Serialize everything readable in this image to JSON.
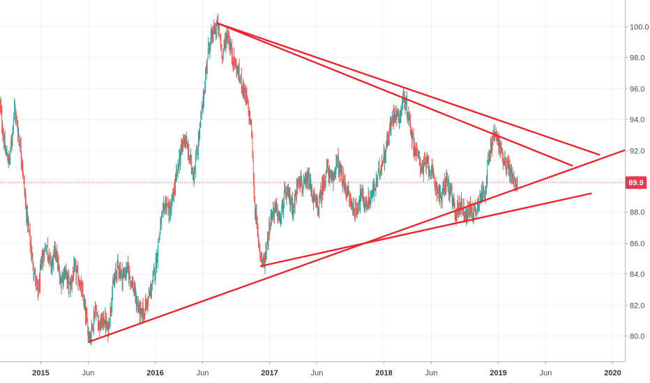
{
  "chart_data": {
    "type": "line",
    "title": "",
    "xlabel": "",
    "ylabel": "",
    "grid": true,
    "x_ticks": [
      {
        "label": "2015",
        "date": "2015-01-01",
        "major": true
      },
      {
        "label": "Jun",
        "date": "2015-06-01",
        "major": false
      },
      {
        "label": "2016",
        "date": "2016-01-01",
        "major": true
      },
      {
        "label": "Jun",
        "date": "2016-06-01",
        "major": false
      },
      {
        "label": "2017",
        "date": "2017-01-01",
        "major": true
      },
      {
        "label": "Jun",
        "date": "2017-06-01",
        "major": false
      },
      {
        "label": "2018",
        "date": "2018-01-01",
        "major": true
      },
      {
        "label": "Jun",
        "date": "2018-06-01",
        "major": false
      },
      {
        "label": "2019",
        "date": "2019-01-01",
        "major": true
      },
      {
        "label": "Jun",
        "date": "2019-06-01",
        "major": false
      },
      {
        "label": "2020",
        "date": "2020-01-01",
        "major": true
      }
    ],
    "y_ticks": [
      "80.0",
      "82.0",
      "84.0",
      "86.0",
      "88.0",
      "90.0",
      "92.0",
      "94.0",
      "96.0",
      "98.0",
      "100.0"
    ],
    "ylim": [
      78.9,
      101.6
    ],
    "xlim": [
      "2014-08-25",
      "2020-02-10"
    ],
    "last_price": {
      "label": "89.9",
      "value": 89.9,
      "color": "#f0344a"
    },
    "price_series": {
      "up_color": "#26a69a",
      "down_color": "#ef5350",
      "points": [
        [
          "2014-08-25",
          95.0
        ],
        [
          "2014-09-10",
          92.0
        ],
        [
          "2014-09-25",
          91.2
        ],
        [
          "2014-10-10",
          94.8
        ],
        [
          "2014-10-20",
          93.5
        ],
        [
          "2014-11-03",
          91.5
        ],
        [
          "2014-11-15",
          88.5
        ],
        [
          "2014-12-01",
          85.8
        ],
        [
          "2014-12-12",
          84.2
        ],
        [
          "2014-12-25",
          82.6
        ],
        [
          "2015-01-05",
          84.8
        ],
        [
          "2015-01-20",
          85.9
        ],
        [
          "2015-02-05",
          84.5
        ],
        [
          "2015-02-20",
          85.6
        ],
        [
          "2015-03-05",
          83.4
        ],
        [
          "2015-03-20",
          84.2
        ],
        [
          "2015-04-05",
          83.1
        ],
        [
          "2015-04-20",
          84.3
        ],
        [
          "2015-05-05",
          83.6
        ],
        [
          "2015-05-18",
          82.4
        ],
        [
          "2015-06-01",
          80.5
        ],
        [
          "2015-06-10",
          79.9
        ],
        [
          "2015-06-25",
          81.8
        ],
        [
          "2015-07-10",
          80.6
        ],
        [
          "2015-07-25",
          81.1
        ],
        [
          "2015-08-05",
          80.3
        ],
        [
          "2015-08-20",
          83.0
        ],
        [
          "2015-09-05",
          84.6
        ],
        [
          "2015-09-20",
          83.8
        ],
        [
          "2015-10-05",
          84.3
        ],
        [
          "2015-10-20",
          83.5
        ],
        [
          "2015-11-05",
          82.1
        ],
        [
          "2015-11-20",
          81.3
        ],
        [
          "2015-12-05",
          82.0
        ],
        [
          "2015-12-20",
          82.9
        ],
        [
          "2016-01-05",
          84.6
        ],
        [
          "2016-01-20",
          87.2
        ],
        [
          "2016-02-05",
          88.6
        ],
        [
          "2016-02-20",
          87.9
        ],
        [
          "2016-03-05",
          89.6
        ],
        [
          "2016-03-20",
          91.4
        ],
        [
          "2016-04-05",
          92.9
        ],
        [
          "2016-04-20",
          91.6
        ],
        [
          "2016-05-05",
          90.4
        ],
        [
          "2016-05-20",
          92.6
        ],
        [
          "2016-06-05",
          95.4
        ],
        [
          "2016-06-20",
          98.6
        ],
        [
          "2016-07-05",
          99.5
        ],
        [
          "2016-07-20",
          100.1
        ],
        [
          "2016-08-05",
          98.2
        ],
        [
          "2016-08-20",
          99.6
        ],
        [
          "2016-09-05",
          98.1
        ],
        [
          "2016-09-20",
          97.2
        ],
        [
          "2016-10-05",
          96.4
        ],
        [
          "2016-10-20",
          95.3
        ],
        [
          "2016-11-05",
          93.4
        ],
        [
          "2016-11-15",
          88.6
        ],
        [
          "2016-11-25",
          86.6
        ],
        [
          "2016-12-05",
          85.2
        ],
        [
          "2016-12-15",
          84.6
        ],
        [
          "2017-01-05",
          87.6
        ],
        [
          "2017-01-20",
          88.3
        ],
        [
          "2017-02-05",
          87.4
        ],
        [
          "2017-02-20",
          89.2
        ],
        [
          "2017-03-05",
          89.0
        ],
        [
          "2017-03-20",
          88.2
        ],
        [
          "2017-04-05",
          90.4
        ],
        [
          "2017-04-20",
          89.5
        ],
        [
          "2017-05-05",
          90.1
        ],
        [
          "2017-05-20",
          89.0
        ],
        [
          "2017-06-05",
          88.2
        ],
        [
          "2017-06-20",
          89.6
        ],
        [
          "2017-07-05",
          90.9
        ],
        [
          "2017-07-20",
          89.8
        ],
        [
          "2017-08-05",
          91.4
        ],
        [
          "2017-08-20",
          90.2
        ],
        [
          "2017-09-05",
          89.4
        ],
        [
          "2017-09-20",
          88.5
        ],
        [
          "2017-10-05",
          88.0
        ],
        [
          "2017-10-20",
          89.2
        ],
        [
          "2017-11-05",
          88.4
        ],
        [
          "2017-11-20",
          88.9
        ],
        [
          "2017-12-05",
          89.6
        ],
        [
          "2017-12-20",
          90.8
        ],
        [
          "2018-01-05",
          91.8
        ],
        [
          "2018-01-20",
          93.2
        ],
        [
          "2018-02-05",
          94.6
        ],
        [
          "2018-02-20",
          94.1
        ],
        [
          "2018-03-05",
          95.4
        ],
        [
          "2018-03-20",
          94.4
        ],
        [
          "2018-04-05",
          92.5
        ],
        [
          "2018-04-20",
          91.6
        ],
        [
          "2018-05-05",
          90.8
        ],
        [
          "2018-05-20",
          91.2
        ],
        [
          "2018-06-05",
          90.4
        ],
        [
          "2018-06-20",
          89.6
        ],
        [
          "2018-07-05",
          88.8
        ],
        [
          "2018-07-20",
          90.2
        ],
        [
          "2018-08-05",
          89.0
        ],
        [
          "2018-08-20",
          87.9
        ],
        [
          "2018-09-05",
          88.6
        ],
        [
          "2018-09-20",
          87.8
        ],
        [
          "2018-10-05",
          88.2
        ],
        [
          "2018-10-20",
          88.0
        ],
        [
          "2018-11-05",
          89.0
        ],
        [
          "2018-11-20",
          89.4
        ],
        [
          "2018-12-05",
          91.6
        ],
        [
          "2018-12-20",
          93.1
        ],
        [
          "2019-01-05",
          92.4
        ],
        [
          "2019-01-20",
          91.4
        ],
        [
          "2019-02-05",
          90.8
        ],
        [
          "2019-02-20",
          90.0
        ],
        [
          "2019-03-05",
          89.9
        ]
      ]
    },
    "trendlines": [
      {
        "from": [
          "2016-07-20",
          100.2
        ],
        "to": [
          "2019-11-20",
          91.7
        ],
        "color": "#f0222e"
      },
      {
        "from": [
          "2016-07-20",
          100.2
        ],
        "to": [
          "2019-08-25",
          91.0
        ],
        "color": "#f0222e"
      },
      {
        "from": [
          "2015-06-05",
          79.6
        ],
        "to": [
          "2020-02-10",
          92.0
        ],
        "color": "#f0222e"
      },
      {
        "from": [
          "2016-12-05",
          84.5
        ],
        "to": [
          "2019-10-25",
          89.2
        ],
        "color": "#f0222e"
      }
    ]
  }
}
